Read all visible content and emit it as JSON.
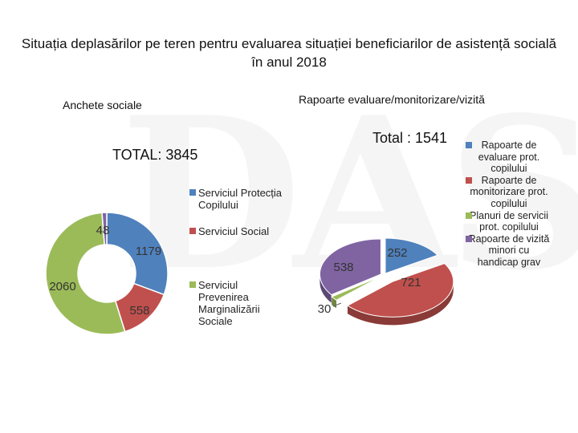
{
  "title": "Situația deplasărilor pe teren pentru evaluarea situației beneficiarilor de asistență socială  în anul 2018",
  "watermark_text": "DAS",
  "chart_data": [
    {
      "type": "pie",
      "subtype": "doughnut",
      "title": "Anchete sociale",
      "total_label": "TOTAL: 3845",
      "categories": [
        "Serviciul Protecția Copilului",
        "Serviciul Social",
        "Serviciul Prevenirea Marginalizării Sociale",
        ""
      ],
      "values": [
        1179,
        558,
        2060,
        48
      ],
      "colors": [
        "#4f81bd",
        "#c0504d",
        "#9bbb59",
        "#8064a2"
      ],
      "legend": [
        "Serviciul Protecția Copilului",
        "Serviciul Social",
        "Serviciul Prevenirea Marginalizării Sociale"
      ],
      "legend_position": "right"
    },
    {
      "type": "pie",
      "subtype": "3d-exploded",
      "title": "Rapoarte evaluare/monitorizare/vizită",
      "total_label": "Total : 1541",
      "categories": [
        "Rapoarte de evaluare prot. copilului",
        "Rapoarte de monitorizare prot. copilului",
        "Planuri de servicii prot. copilului",
        "Rapoarte de vizită minori cu handicap grav"
      ],
      "values": [
        252,
        721,
        30,
        538
      ],
      "colors": [
        "#4f81bd",
        "#c0504d",
        "#9bbb59",
        "#8064a2"
      ],
      "legend_position": "right"
    }
  ]
}
